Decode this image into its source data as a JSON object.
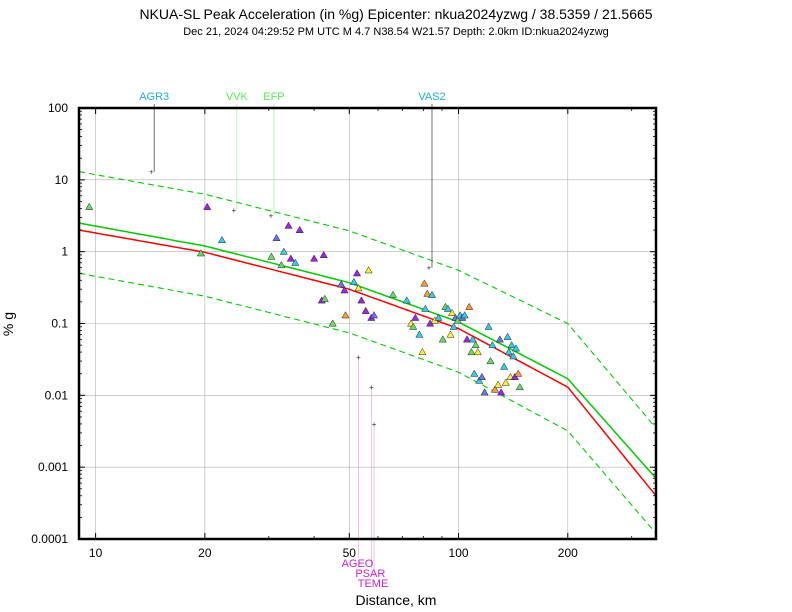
{
  "chart_data": {
    "type": "scatter",
    "title": "NKUA-SL Peak Acceleration (in %g) Epicenter: nkua2024yzwg / 38.5359 / 21.5665",
    "subtitle": "Dec 21, 2024 04:29:52 PM UTC   M 4.7   N38.54 W21.57   Depth: 2.0km   ID:nkua2024yzwg",
    "xlabel": "Distance, km",
    "ylabel": "% g",
    "x_scale": "log",
    "y_scale": "log",
    "xlim": [
      9,
      350
    ],
    "ylim": [
      0.0001,
      100
    ],
    "x_ticks": [
      10,
      20,
      50,
      100,
      200
    ],
    "x_tick_labels": [
      "10",
      "20",
      "50",
      "100",
      "200"
    ],
    "y_ticks": [
      100,
      10,
      1,
      0.1,
      0.01,
      0.001,
      0.0001
    ],
    "y_tick_labels": [
      "100",
      "10",
      "1",
      "0.1",
      "0.01",
      "0.001",
      "0.0001"
    ],
    "colors": {
      "red_curve": "#ff0000",
      "green_curve": "#00cc00",
      "purple": "#a020f0",
      "cyan": "#33ccee",
      "yellow": "#ffee33",
      "green": "#66dd66",
      "orange": "#ff9933",
      "blue": "#6677ee",
      "label_cyan": "#1ab0d0",
      "label_green": "#55ee55",
      "label_magenta": "#cc22cc"
    },
    "series": [
      {
        "name": "mean prediction (red)",
        "style": "red",
        "x": [
          9,
          20,
          50,
          100,
          200,
          350
        ],
        "y": [
          2.0,
          0.98,
          0.3,
          0.085,
          0.013,
          0.0004
        ]
      },
      {
        "name": "upper fit (green)",
        "style": "green",
        "x": [
          9,
          20,
          50,
          100,
          200,
          350
        ],
        "y": [
          2.5,
          1.2,
          0.37,
          0.105,
          0.017,
          0.0007
        ]
      },
      {
        "name": "plus 1 sigma (dashed)",
        "style": "green_dashed",
        "x": [
          9,
          20,
          50,
          100,
          200,
          350
        ],
        "y": [
          13,
          6.3,
          1.95,
          0.55,
          0.1,
          0.0035
        ]
      },
      {
        "name": "minus 1 sigma (dashed)",
        "style": "green_dashed",
        "x": [
          9,
          20,
          50,
          100,
          200,
          350
        ],
        "y": [
          0.5,
          0.24,
          0.074,
          0.021,
          0.0032,
          0.00012
        ]
      }
    ],
    "stations": [
      {
        "x": 9.6,
        "y": 4.2,
        "c": "green"
      },
      {
        "x": 19.5,
        "y": 0.95,
        "c": "green"
      },
      {
        "x": 20.3,
        "y": 4.2,
        "c": "purple"
      },
      {
        "x": 22.3,
        "y": 1.45,
        "c": "cyan"
      },
      {
        "x": 30.5,
        "y": 0.85,
        "c": "green"
      },
      {
        "x": 31.5,
        "y": 1.55,
        "c": "blue"
      },
      {
        "x": 32.5,
        "y": 0.65,
        "c": "green"
      },
      {
        "x": 33.0,
        "y": 1.0,
        "c": "cyan"
      },
      {
        "x": 34.0,
        "y": 2.3,
        "c": "purple"
      },
      {
        "x": 34.5,
        "y": 0.8,
        "c": "purple"
      },
      {
        "x": 35.5,
        "y": 0.7,
        "c": "cyan"
      },
      {
        "x": 36.5,
        "y": 2.0,
        "c": "purple"
      },
      {
        "x": 40.0,
        "y": 0.8,
        "c": "purple"
      },
      {
        "x": 42.5,
        "y": 0.9,
        "c": "purple"
      },
      {
        "x": 42.0,
        "y": 0.21,
        "c": "purple"
      },
      {
        "x": 42.8,
        "y": 0.22,
        "c": "green"
      },
      {
        "x": 45.0,
        "y": 0.1,
        "c": "green"
      },
      {
        "x": 47.5,
        "y": 0.35,
        "c": "blue"
      },
      {
        "x": 48.5,
        "y": 0.29,
        "c": "purple"
      },
      {
        "x": 48.8,
        "y": 0.13,
        "c": "orange"
      },
      {
        "x": 51.5,
        "y": 0.38,
        "c": "cyan"
      },
      {
        "x": 52.5,
        "y": 0.5,
        "c": "purple"
      },
      {
        "x": 53.0,
        "y": 0.31,
        "c": "yellow"
      },
      {
        "x": 54.0,
        "y": 0.21,
        "c": "purple"
      },
      {
        "x": 55.5,
        "y": 0.15,
        "c": "purple"
      },
      {
        "x": 56.5,
        "y": 0.55,
        "c": "yellow"
      },
      {
        "x": 57.5,
        "y": 0.12,
        "c": "purple"
      },
      {
        "x": 58.5,
        "y": 0.13,
        "c": "blue"
      },
      {
        "x": 66.0,
        "y": 0.25,
        "c": "green"
      },
      {
        "x": 72.0,
        "y": 0.21,
        "c": "cyan"
      },
      {
        "x": 74.0,
        "y": 0.1,
        "c": "yellow"
      },
      {
        "x": 75.0,
        "y": 0.09,
        "c": "green"
      },
      {
        "x": 76.0,
        "y": 0.12,
        "c": "purple"
      },
      {
        "x": 78.0,
        "y": 0.07,
        "c": "cyan"
      },
      {
        "x": 79.5,
        "y": 0.04,
        "c": "yellow"
      },
      {
        "x": 80.5,
        "y": 0.36,
        "c": "orange"
      },
      {
        "x": 81.0,
        "y": 0.16,
        "c": "cyan"
      },
      {
        "x": 82.0,
        "y": 0.26,
        "c": "orange"
      },
      {
        "x": 83.5,
        "y": 0.1,
        "c": "purple"
      },
      {
        "x": 84.5,
        "y": 0.25,
        "c": "cyan"
      },
      {
        "x": 86.0,
        "y": 0.11,
        "c": "yellow"
      },
      {
        "x": 88.0,
        "y": 0.12,
        "c": "cyan"
      },
      {
        "x": 90.5,
        "y": 0.06,
        "c": "green"
      },
      {
        "x": 92.0,
        "y": 0.17,
        "c": "green"
      },
      {
        "x": 93.5,
        "y": 0.16,
        "c": "cyan"
      },
      {
        "x": 95.0,
        "y": 0.07,
        "c": "yellow"
      },
      {
        "x": 96.0,
        "y": 0.14,
        "c": "yellow"
      },
      {
        "x": 97.0,
        "y": 0.09,
        "c": "cyan"
      },
      {
        "x": 98.0,
        "y": 0.12,
        "c": "blue"
      },
      {
        "x": 99.5,
        "y": 0.11,
        "c": "green"
      },
      {
        "x": 101.0,
        "y": 0.13,
        "c": "cyan"
      },
      {
        "x": 102.5,
        "y": 0.12,
        "c": "blue"
      },
      {
        "x": 104.0,
        "y": 0.13,
        "c": "cyan"
      },
      {
        "x": 105.5,
        "y": 0.06,
        "c": "purple"
      },
      {
        "x": 107.0,
        "y": 0.17,
        "c": "orange"
      },
      {
        "x": 108.5,
        "y": 0.04,
        "c": "green"
      },
      {
        "x": 109.5,
        "y": 0.06,
        "c": "cyan"
      },
      {
        "x": 110.5,
        "y": 0.02,
        "c": "cyan"
      },
      {
        "x": 111.5,
        "y": 0.05,
        "c": "green"
      },
      {
        "x": 113.0,
        "y": 0.04,
        "c": "yellow"
      },
      {
        "x": 114.0,
        "y": 0.016,
        "c": "cyan"
      },
      {
        "x": 116.0,
        "y": 0.018,
        "c": "blue"
      },
      {
        "x": 118.0,
        "y": 0.011,
        "c": "blue"
      },
      {
        "x": 121.0,
        "y": 0.09,
        "c": "cyan"
      },
      {
        "x": 122.5,
        "y": 0.03,
        "c": "green"
      },
      {
        "x": 124.0,
        "y": 0.05,
        "c": "cyan"
      },
      {
        "x": 126.0,
        "y": 0.012,
        "c": "orange"
      },
      {
        "x": 128.5,
        "y": 0.014,
        "c": "yellow"
      },
      {
        "x": 130.0,
        "y": 0.06,
        "c": "blue"
      },
      {
        "x": 131.0,
        "y": 0.011,
        "c": "purple"
      },
      {
        "x": 133.5,
        "y": 0.025,
        "c": "cyan"
      },
      {
        "x": 135.0,
        "y": 0.015,
        "c": "yellow"
      },
      {
        "x": 136.5,
        "y": 0.065,
        "c": "cyan"
      },
      {
        "x": 137.5,
        "y": 0.04,
        "c": "cyan"
      },
      {
        "x": 139.0,
        "y": 0.018,
        "c": "yellow"
      },
      {
        "x": 140.0,
        "y": 0.05,
        "c": "cyan"
      },
      {
        "x": 141.5,
        "y": 0.035,
        "c": "cyan"
      },
      {
        "x": 143.0,
        "y": 0.018,
        "c": "purple"
      },
      {
        "x": 144.0,
        "y": 0.045,
        "c": "cyan"
      },
      {
        "x": 146.0,
        "y": 0.02,
        "c": "orange"
      },
      {
        "x": 147.5,
        "y": 0.013,
        "c": "green"
      }
    ],
    "annotations_top": [
      {
        "label": "AGR3",
        "x": 14.5,
        "y": 13,
        "color": "label_cyan"
      },
      {
        "label": "VVK",
        "x": 24.5,
        "y": 3.8,
        "color": "label_green"
      },
      {
        "label": "EFP",
        "x": 31,
        "y": 3.2,
        "color": "label_green"
      },
      {
        "label": "VAS2",
        "x": 84.5,
        "y": 0.6,
        "color": "label_cyan"
      }
    ],
    "annotations_bottom": [
      {
        "label": "AGEO",
        "x": 53,
        "y": 0.034,
        "color": "label_magenta"
      },
      {
        "label": "PSAR",
        "x": 57.5,
        "y": 0.013,
        "color": "label_magenta"
      },
      {
        "label": "TEME",
        "x": 58.5,
        "y": 0.004,
        "color": "label_magenta"
      }
    ]
  }
}
